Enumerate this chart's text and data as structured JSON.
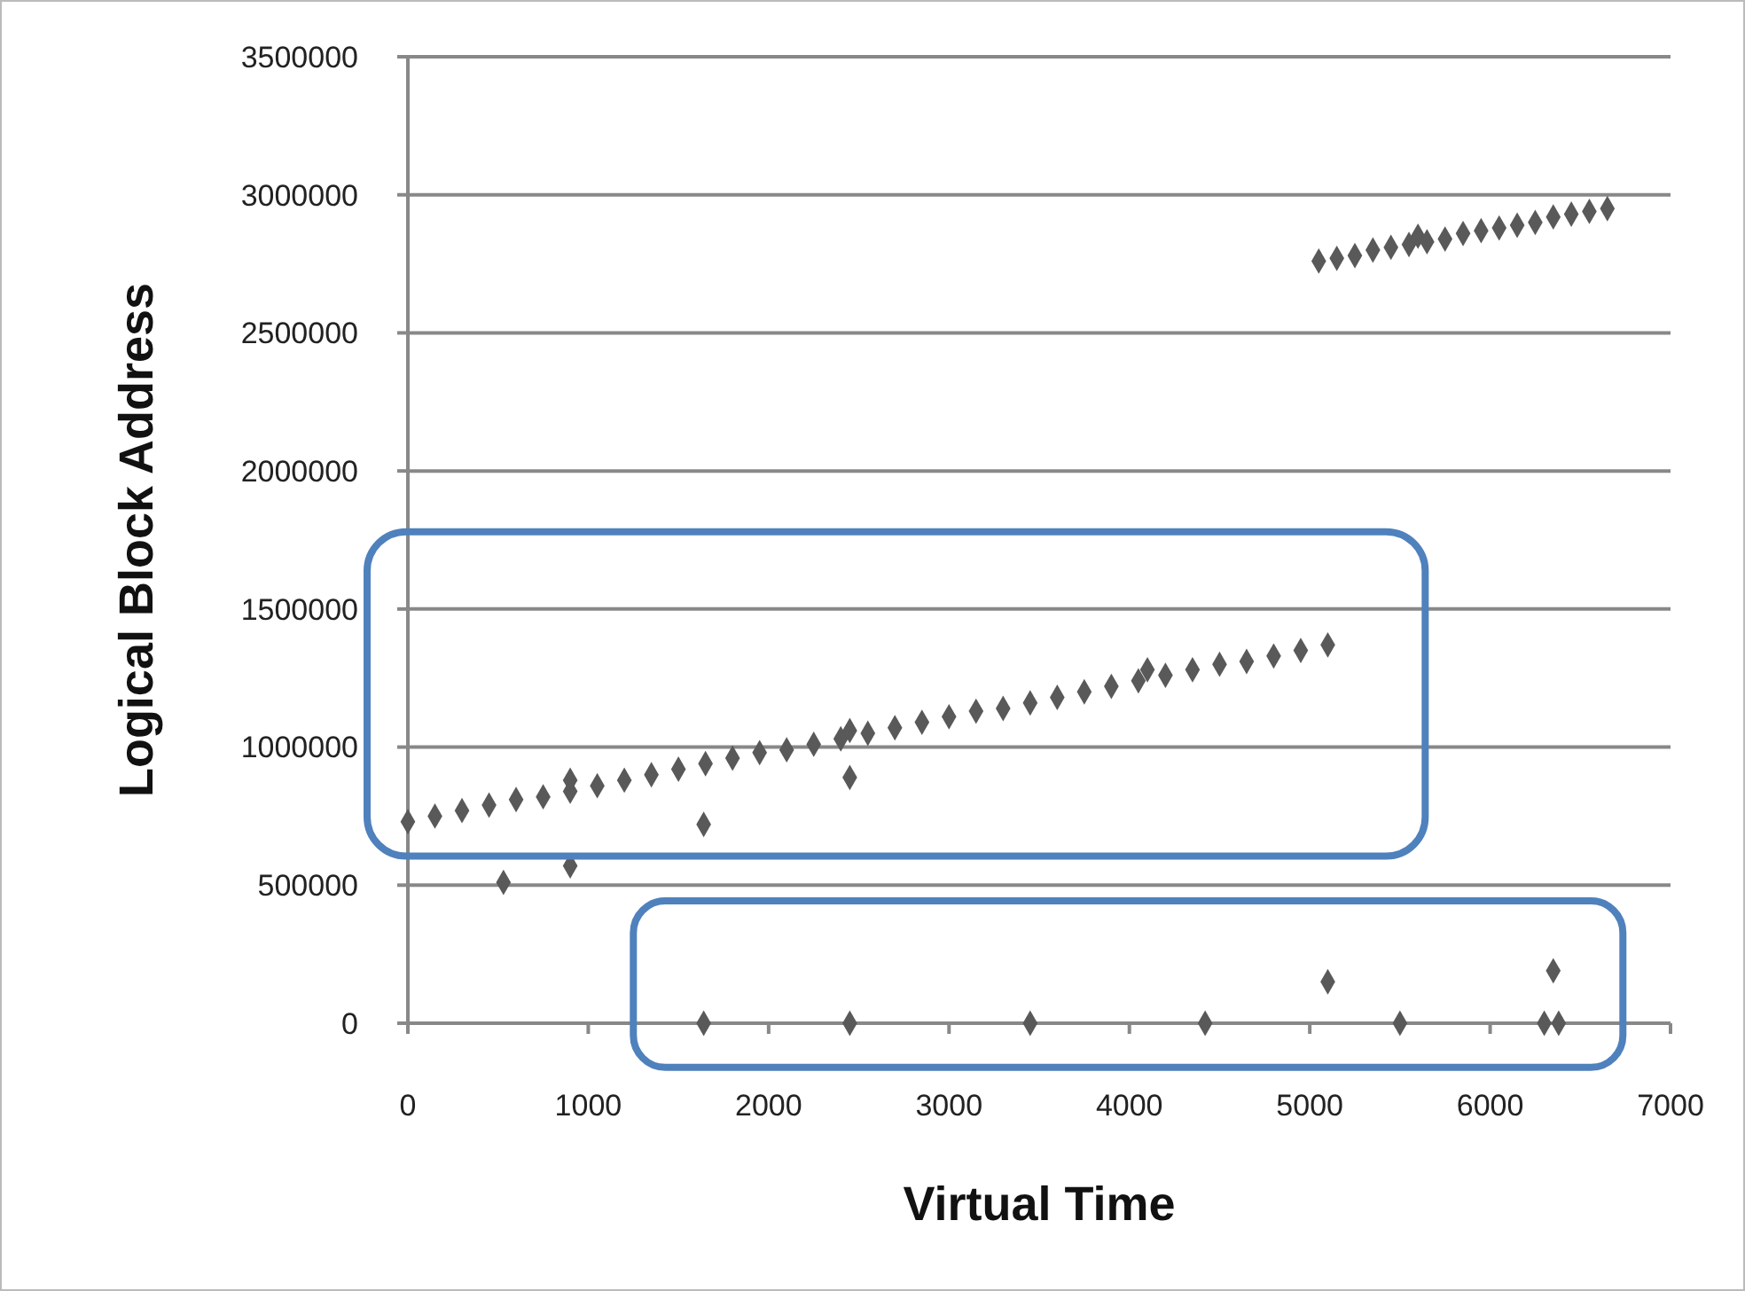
{
  "chart_data": {
    "type": "scatter",
    "xlabel": "Virtual Time",
    "ylabel": "Logical Block Address",
    "xlim": [
      0,
      7000
    ],
    "xticks": [
      0,
      1000,
      2000,
      3000,
      4000,
      5000,
      6000,
      7000
    ],
    "ylim": [
      0,
      3500000
    ],
    "yticks": [
      0,
      500000,
      1000000,
      1500000,
      2000000,
      2500000,
      3000000,
      3500000
    ],
    "grid": "y",
    "marker": "diamond",
    "series": [
      {
        "color": "#595959",
        "x": [
          0,
          150,
          300,
          450,
          600,
          750,
          900,
          1050,
          1200,
          1350,
          1500,
          1650,
          1800,
          1950,
          2100,
          2250,
          2400,
          2550,
          2700,
          2850,
          3000,
          3150,
          3300,
          3450,
          3600,
          3750,
          3900,
          4050,
          4200,
          4350,
          4500,
          4650,
          4800,
          4950,
          5100,
          900,
          2450,
          4100,
          5050,
          5150,
          5250,
          5350,
          5450,
          5550,
          5600,
          5650,
          5750,
          5850,
          5950,
          6050,
          6150,
          6250,
          6350,
          6450,
          6550,
          6650,
          530,
          900,
          1640,
          2450,
          1640,
          2450,
          3450,
          4420,
          5100,
          5500,
          6300,
          6350,
          6380
        ],
        "values": [
          730000,
          750000,
          770000,
          790000,
          810000,
          820000,
          840000,
          860000,
          880000,
          900000,
          920000,
          940000,
          960000,
          980000,
          990000,
          1010000,
          1030000,
          1050000,
          1070000,
          1090000,
          1110000,
          1130000,
          1140000,
          1160000,
          1180000,
          1200000,
          1220000,
          1240000,
          1260000,
          1280000,
          1300000,
          1310000,
          1330000,
          1350000,
          1370000,
          880000,
          1060000,
          1280000,
          2760000,
          2770000,
          2780000,
          2800000,
          2810000,
          2820000,
          2850000,
          2830000,
          2840000,
          2860000,
          2870000,
          2880000,
          2890000,
          2900000,
          2920000,
          2930000,
          2940000,
          2950000,
          510000,
          570000,
          720000,
          890000,
          0,
          0,
          0,
          0,
          150000,
          0,
          0,
          190000,
          0
        ]
      }
    ]
  }
}
